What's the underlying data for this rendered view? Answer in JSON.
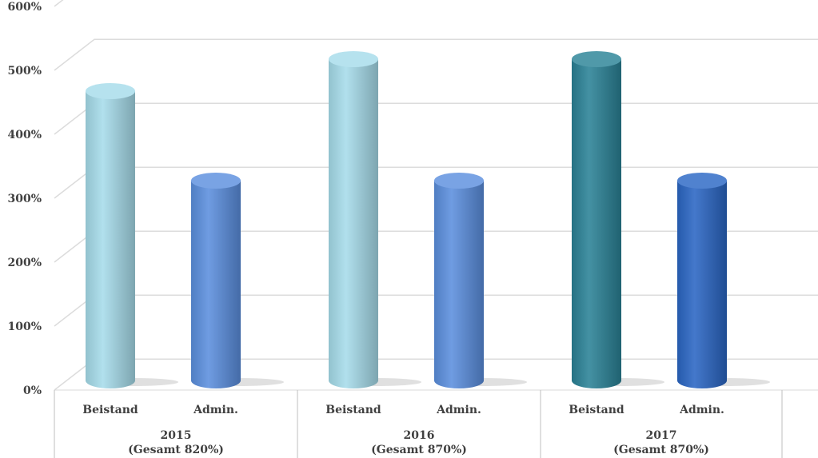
{
  "chart_data": {
    "type": "bar",
    "title": "",
    "xlabel": "",
    "ylabel": "",
    "ylim": [
      0,
      600
    ],
    "y_ticks": [
      "0%",
      "100%",
      "200%",
      "300%",
      "400%",
      "500%",
      "600%"
    ],
    "grid": true,
    "groups": [
      {
        "year": "2015",
        "total": "(Gesamt 820%)",
        "bars": [
          {
            "label": "Beistand",
            "value": 480,
            "color": "#a6dcea"
          },
          {
            "label": "Admin.",
            "value": 340,
            "color": "#5b8fde"
          }
        ]
      },
      {
        "year": "2016",
        "total": "(Gesamt 870%)",
        "bars": [
          {
            "label": "Beistand",
            "value": 530,
            "color": "#a6dcea"
          },
          {
            "label": "Admin.",
            "value": 340,
            "color": "#5b8fde"
          }
        ]
      },
      {
        "year": "2017",
        "total": "(Gesamt 870%)",
        "bars": [
          {
            "label": "Beistand",
            "value": 530,
            "color": "#2a8296"
          },
          {
            "label": "Admin.",
            "value": 340,
            "color": "#2a66c4"
          }
        ]
      }
    ]
  }
}
